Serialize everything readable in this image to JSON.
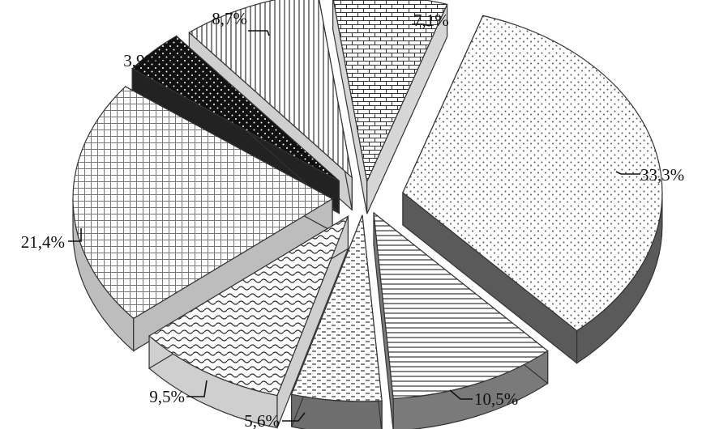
{
  "chart_data": {
    "type": "pie",
    "style": "3d-exploded",
    "title": "",
    "legend": "none",
    "slices": [
      {
        "value": 33.3,
        "label": "33,3%",
        "pattern": "dots"
      },
      {
        "value": 10.5,
        "label": "10,5%",
        "pattern": "horizontal-lines"
      },
      {
        "value": 5.6,
        "label": "5,6%",
        "pattern": "dashes"
      },
      {
        "value": 9.5,
        "label": "9,5%",
        "pattern": "waves"
      },
      {
        "value": 21.4,
        "label": "21,4%",
        "pattern": "grid"
      },
      {
        "value": 3.9,
        "label": "3,9%",
        "pattern": "black-dots"
      },
      {
        "value": 8.7,
        "label": "8,7%",
        "pattern": "vertical-lines"
      },
      {
        "value": 7.1,
        "label": "7,1%",
        "pattern": "bricks"
      }
    ]
  }
}
